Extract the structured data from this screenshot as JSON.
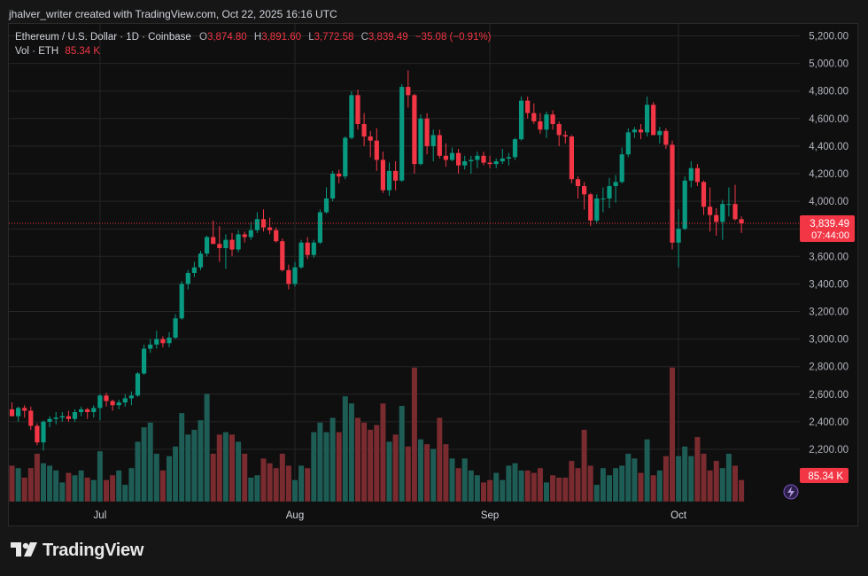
{
  "header": {
    "credit": "jhalver_writer created with TradingView.com, Oct 22, 2025 16:16 UTC"
  },
  "legend": {
    "symbol": "Ethereum / U.S. Dollar · 1D · Coinbase",
    "o_label": "O",
    "o_value": "3,874.80",
    "h_label": "H",
    "h_value": "3,891.60",
    "l_label": "L",
    "l_value": "3,772.58",
    "c_label": "C",
    "c_value": "3,839.49",
    "change": "−35.08 (−0.91%)",
    "vol_label": "Vol · ETH",
    "vol_value": "85.34 K"
  },
  "price_tag": {
    "price": "3,839.49",
    "countdown": "07:44:00"
  },
  "vol_tag": "85.34 K",
  "brand": "TradingView",
  "colors": {
    "up": "#089981",
    "down": "#f23645",
    "vol_up": "#1e5d55",
    "vol_down": "#7a2b2f"
  },
  "chart_data": {
    "type": "candlestick",
    "y_ticks": [
      "5,200.00",
      "5,000.00",
      "4,800.00",
      "4,600.00",
      "4,400.00",
      "4,200.00",
      "4,000.00",
      "3,800.00",
      "3,600.00",
      "3,400.00",
      "3,200.00",
      "3,000.00",
      "2,800.00",
      "2,600.00",
      "2,400.00",
      "2,200.00"
    ],
    "ylim": [
      2000,
      5300
    ],
    "x_ticks": [
      {
        "label": "Jul",
        "index": 14
      },
      {
        "label": "Aug",
        "index": 45
      },
      {
        "label": "Sep",
        "index": 76
      },
      {
        "label": "Oct",
        "index": 106
      }
    ],
    "last_price": 3839.49,
    "candles": [
      [
        2490,
        2540,
        2440,
        2440,
        0.3
      ],
      [
        2440,
        2510,
        2400,
        2500,
        0.28
      ],
      [
        2500,
        2520,
        2430,
        2480,
        0.2
      ],
      [
        2480,
        2510,
        2340,
        2370,
        0.28
      ],
      [
        2370,
        2390,
        2230,
        2250,
        0.4
      ],
      [
        2250,
        2410,
        2190,
        2400,
        0.32
      ],
      [
        2400,
        2440,
        2360,
        2420,
        0.3
      ],
      [
        2420,
        2470,
        2380,
        2430,
        0.26
      ],
      [
        2430,
        2470,
        2400,
        2440,
        0.16
      ],
      [
        2440,
        2480,
        2400,
        2420,
        0.24
      ],
      [
        2420,
        2490,
        2400,
        2470,
        0.22
      ],
      [
        2470,
        2510,
        2440,
        2490,
        0.26
      ],
      [
        2490,
        2500,
        2420,
        2470,
        0.2
      ],
      [
        2470,
        2520,
        2430,
        2500,
        0.18
      ],
      [
        2500,
        2600,
        2410,
        2590,
        0.42
      ],
      [
        2590,
        2610,
        2510,
        2550,
        0.18
      ],
      [
        2550,
        2560,
        2480,
        2520,
        0.22
      ],
      [
        2520,
        2560,
        2490,
        2540,
        0.26
      ],
      [
        2540,
        2600,
        2510,
        2570,
        0.14
      ],
      [
        2570,
        2620,
        2520,
        2590,
        0.28
      ],
      [
        2590,
        2760,
        2580,
        2750,
        0.5
      ],
      [
        2750,
        2960,
        2740,
        2930,
        0.62
      ],
      [
        2930,
        3000,
        2900,
        2960,
        0.66
      ],
      [
        2960,
        3060,
        2930,
        3000,
        0.4
      ],
      [
        3000,
        3020,
        2940,
        2970,
        0.26
      ],
      [
        2970,
        3050,
        2940,
        3010,
        0.38
      ],
      [
        3010,
        3180,
        3000,
        3150,
        0.46
      ],
      [
        3150,
        3420,
        3140,
        3400,
        0.74
      ],
      [
        3400,
        3500,
        3360,
        3480,
        0.56
      ],
      [
        3480,
        3560,
        3450,
        3520,
        0.6
      ],
      [
        3520,
        3640,
        3500,
        3620,
        0.68
      ],
      [
        3620,
        3750,
        3600,
        3740,
        0.9
      ],
      [
        3740,
        3860,
        3700,
        3690,
        0.4
      ],
      [
        3690,
        3820,
        3560,
        3660,
        0.56
      ],
      [
        3660,
        3760,
        3510,
        3720,
        0.58
      ],
      [
        3720,
        3770,
        3600,
        3650,
        0.56
      ],
      [
        3650,
        3790,
        3630,
        3760,
        0.5
      ],
      [
        3760,
        3780,
        3700,
        3740,
        0.4
      ],
      [
        3740,
        3850,
        3720,
        3790,
        0.2
      ],
      [
        3790,
        3920,
        3770,
        3870,
        0.22
      ],
      [
        3870,
        3940,
        3780,
        3810,
        0.36
      ],
      [
        3810,
        3880,
        3760,
        3790,
        0.32
      ],
      [
        3790,
        3810,
        3700,
        3710,
        0.28
      ],
      [
        3710,
        3730,
        3490,
        3500,
        0.4
      ],
      [
        3500,
        3540,
        3360,
        3400,
        0.3
      ],
      [
        3400,
        3560,
        3380,
        3520,
        0.18
      ],
      [
        3520,
        3720,
        3510,
        3700,
        0.3
      ],
      [
        3700,
        3740,
        3580,
        3610,
        0.28
      ],
      [
        3610,
        3720,
        3590,
        3700,
        0.58
      ],
      [
        3700,
        3940,
        3690,
        3920,
        0.66
      ],
      [
        3920,
        4100,
        3910,
        4020,
        0.58
      ],
      [
        4020,
        4220,
        4000,
        4200,
        0.7
      ],
      [
        4200,
        4230,
        4130,
        4180,
        0.58
      ],
      [
        4180,
        4470,
        4160,
        4460,
        0.88
      ],
      [
        4460,
        4800,
        4450,
        4770,
        0.82
      ],
      [
        4770,
        4810,
        4520,
        4560,
        0.7
      ],
      [
        4560,
        4640,
        4400,
        4470,
        0.66
      ],
      [
        4470,
        4510,
        4320,
        4440,
        0.6
      ],
      [
        4440,
        4530,
        4220,
        4300,
        0.64
      ],
      [
        4300,
        4360,
        4060,
        4080,
        0.82
      ],
      [
        4080,
        4280,
        4040,
        4220,
        0.5
      ],
      [
        4220,
        4290,
        4080,
        4150,
        0.56
      ],
      [
        4150,
        4850,
        4140,
        4830,
        0.8
      ],
      [
        4830,
        4950,
        4680,
        4770,
        0.46
      ],
      [
        4770,
        4780,
        4200,
        4270,
        1.12
      ],
      [
        4270,
        4630,
        4260,
        4600,
        0.52
      ],
      [
        4600,
        4640,
        4340,
        4400,
        0.48
      ],
      [
        4400,
        4520,
        4290,
        4480,
        0.44
      ],
      [
        4480,
        4520,
        4310,
        4330,
        0.7
      ],
      [
        4330,
        4420,
        4250,
        4300,
        0.48
      ],
      [
        4300,
        4390,
        4290,
        4350,
        0.36
      ],
      [
        4350,
        4380,
        4200,
        4260,
        0.28
      ],
      [
        4260,
        4330,
        4230,
        4290,
        0.36
      ],
      [
        4290,
        4330,
        4200,
        4300,
        0.26
      ],
      [
        4300,
        4360,
        4240,
        4330,
        0.22
      ],
      [
        4330,
        4360,
        4260,
        4280,
        0.16
      ],
      [
        4280,
        4330,
        4240,
        4270,
        0.18
      ],
      [
        4270,
        4310,
        4240,
        4290,
        0.24
      ],
      [
        4290,
        4380,
        4270,
        4310,
        0.18
      ],
      [
        4310,
        4350,
        4260,
        4320,
        0.3
      ],
      [
        4320,
        4460,
        4300,
        4450,
        0.32
      ],
      [
        4450,
        4760,
        4440,
        4730,
        0.26
      ],
      [
        4730,
        4760,
        4600,
        4640,
        0.26
      ],
      [
        4640,
        4710,
        4560,
        4580,
        0.24
      ],
      [
        4580,
        4640,
        4490,
        4520,
        0.28
      ],
      [
        4520,
        4650,
        4460,
        4630,
        0.16
      ],
      [
        4630,
        4660,
        4520,
        4560,
        0.22
      ],
      [
        4560,
        4580,
        4400,
        4480,
        0.2
      ],
      [
        4480,
        4510,
        4420,
        4470,
        0.2
      ],
      [
        4470,
        4480,
        4130,
        4160,
        0.34
      ],
      [
        4160,
        4180,
        4020,
        4110,
        0.28
      ],
      [
        4110,
        4140,
        3940,
        4050,
        0.6
      ],
      [
        4050,
        4060,
        3820,
        3860,
        0.3
      ],
      [
        3860,
        4050,
        3840,
        4020,
        0.14
      ],
      [
        4020,
        4100,
        3920,
        4020,
        0.28
      ],
      [
        4020,
        4170,
        3950,
        4110,
        0.22
      ],
      [
        4110,
        4190,
        3990,
        4140,
        0.28
      ],
      [
        4140,
        4390,
        4130,
        4340,
        0.3
      ],
      [
        4340,
        4530,
        4320,
        4500,
        0.4
      ],
      [
        4500,
        4540,
        4460,
        4520,
        0.36
      ],
      [
        4520,
        4560,
        4450,
        4500,
        0.24
      ],
      [
        4500,
        4760,
        4470,
        4700,
        0.52
      ],
      [
        4700,
        4720,
        4500,
        4480,
        0.22
      ],
      [
        4480,
        4540,
        4420,
        4510,
        0.26
      ],
      [
        4510,
        4530,
        4380,
        4410,
        0.38
      ],
      [
        4410,
        4440,
        3650,
        3700,
        1.12
      ],
      [
        3700,
        3940,
        3520,
        3800,
        0.38
      ],
      [
        3800,
        4180,
        3790,
        4150,
        0.46
      ],
      [
        4150,
        4290,
        4100,
        4240,
        0.38
      ],
      [
        4240,
        4270,
        4110,
        4140,
        0.54
      ],
      [
        4140,
        4150,
        3900,
        3960,
        0.4
      ],
      [
        3960,
        4100,
        3780,
        3900,
        0.26
      ],
      [
        3900,
        3950,
        3750,
        3850,
        0.34
      ],
      [
        3850,
        4010,
        3720,
        3980,
        0.28
      ],
      [
        3980,
        4100,
        3890,
        3980,
        0.4
      ],
      [
        3980,
        4120,
        3860,
        3870,
        0.3
      ],
      [
        3870,
        3890,
        3770,
        3839.49,
        0.18
      ]
    ]
  }
}
